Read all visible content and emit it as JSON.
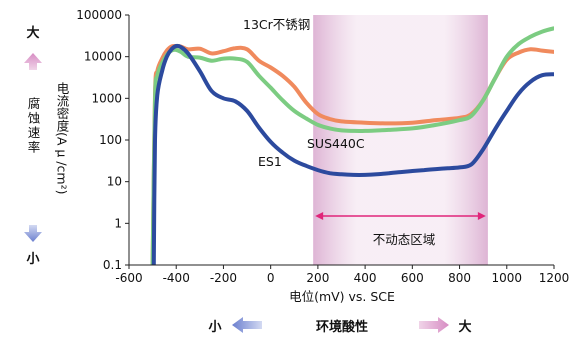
{
  "chart_data": {
    "type": "line",
    "title": "",
    "xlabel": "电位(mV) vs. SCE",
    "ylabel": "电流密度(A μ /cm²)",
    "y_side_label": "腐蚀速率",
    "x_scale": "linear",
    "y_scale": "log",
    "xlim": [
      -600,
      1200
    ],
    "ylim": [
      0.1,
      100000
    ],
    "x_ticks": [
      "-600",
      "-400",
      "-200",
      "0",
      "200",
      "400",
      "600",
      "800",
      "1000",
      "1200"
    ],
    "y_ticks": [
      "0.1",
      "1",
      "10",
      "100",
      "1000",
      "10000",
      "100000"
    ],
    "grid": false,
    "series": [
      {
        "name": "13Cr不锈钢",
        "color": "#f08a5d",
        "x": [
          -500,
          -490,
          -480,
          -460,
          -440,
          -420,
          -400,
          -380,
          -350,
          -300,
          -250,
          -200,
          -150,
          -100,
          -50,
          0,
          50,
          100,
          150,
          200,
          250,
          300,
          400,
          500,
          600,
          700,
          800,
          850,
          900,
          950,
          1000,
          1050,
          1100,
          1150,
          1200
        ],
        "y": [
          0.1,
          1200,
          4500,
          9000,
          14000,
          17500,
          18000,
          17500,
          15000,
          15500,
          12000,
          13500,
          16000,
          15000,
          8000,
          5500,
          3500,
          1900,
          800,
          420,
          320,
          280,
          260,
          250,
          260,
          300,
          340,
          420,
          900,
          3000,
          8500,
          12500,
          15000,
          14000,
          13000
        ]
      },
      {
        "name": "SUS440C",
        "color": "#7ccc82",
        "x": [
          -500,
          -490,
          -480,
          -460,
          -440,
          -420,
          -400,
          -380,
          -350,
          -300,
          -250,
          -200,
          -150,
          -100,
          -50,
          0,
          50,
          100,
          150,
          200,
          250,
          300,
          350,
          400,
          500,
          600,
          700,
          800,
          850,
          900,
          950,
          1000,
          1050,
          1100,
          1150,
          1200
        ],
        "y": [
          0.1,
          900,
          3500,
          7000,
          11000,
          14000,
          14500,
          13000,
          10000,
          9500,
          8000,
          9000,
          9000,
          7500,
          3500,
          1800,
          900,
          500,
          330,
          230,
          190,
          170,
          165,
          165,
          175,
          190,
          230,
          300,
          380,
          900,
          3000,
          10000,
          20000,
          30000,
          40000,
          48000
        ]
      },
      {
        "name": "ES1",
        "color": "#2c4a9e",
        "x": [
          -495,
          -490,
          -480,
          -460,
          -440,
          -420,
          -400,
          -380,
          -350,
          -300,
          -250,
          -200,
          -150,
          -100,
          -50,
          0,
          50,
          100,
          150,
          200,
          250,
          300,
          350,
          400,
          450,
          500,
          550,
          600,
          650,
          700,
          750,
          800,
          850,
          900,
          950,
          1000,
          1050,
          1100,
          1150,
          1200
        ],
        "y": [
          0.1,
          100,
          1200,
          4500,
          10000,
          15000,
          18000,
          17000,
          12000,
          4500,
          1500,
          1000,
          850,
          500,
          200,
          90,
          50,
          32,
          24,
          19,
          16,
          15,
          14.5,
          14.5,
          15,
          16,
          17,
          18,
          19,
          20,
          21,
          22,
          26,
          60,
          180,
          500,
          1300,
          2500,
          3600,
          3800
        ]
      }
    ],
    "series_labels": [
      "13Cr不锈钢",
      "SUS440C",
      "ES1"
    ],
    "passive_region": {
      "x_start": 180,
      "x_end": 920,
      "label": "不动态区域"
    },
    "left_top_label": "大",
    "left_bottom_label": "小",
    "bottom_axis": {
      "left": "小",
      "center": "环境酸性",
      "right": "大"
    },
    "colors": {
      "arrow_up_down": "#8a9ad6",
      "arrow_pink": "#d07fb9",
      "region_band": "#e8c6de",
      "region_arrow": "#e0257a"
    }
  }
}
